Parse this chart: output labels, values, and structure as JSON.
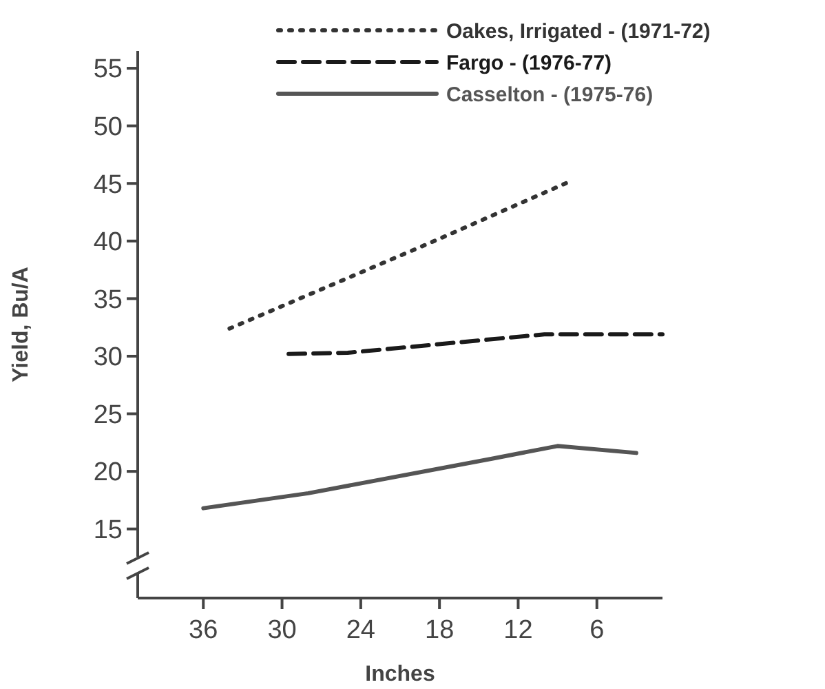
{
  "chart_data": {
    "type": "line",
    "xlabel": "Inches",
    "ylabel": "Yield, Bu/A",
    "xlim": [
      41,
      1
    ],
    "xticks": [
      36,
      30,
      24,
      18,
      12,
      6
    ],
    "ylim": [
      9,
      56.5
    ],
    "yticks": [
      15,
      20,
      25,
      30,
      35,
      40,
      45,
      50,
      55
    ],
    "legend": "top right",
    "grid": false,
    "series": [
      {
        "name": "Oakes, Irrigated - (1971-72)",
        "color": "#333333",
        "line_style": "dotted",
        "x": [
          34,
          18.8,
          8
        ],
        "values": [
          32.4,
          39.8,
          45.2
        ]
      },
      {
        "name": "Fargo - (1976-77)",
        "color": "#1a1a1a",
        "line_style": "dashed",
        "x": [
          29.5,
          25,
          10,
          1
        ],
        "values": [
          30.2,
          30.3,
          31.9,
          31.9
        ]
      },
      {
        "name": "Casselton - (1975-76)",
        "color": "#555555",
        "line_style": "solid",
        "x": [
          36,
          28,
          14,
          9,
          3
        ],
        "values": [
          16.8,
          18.1,
          21.1,
          22.2,
          21.6
        ]
      }
    ]
  }
}
